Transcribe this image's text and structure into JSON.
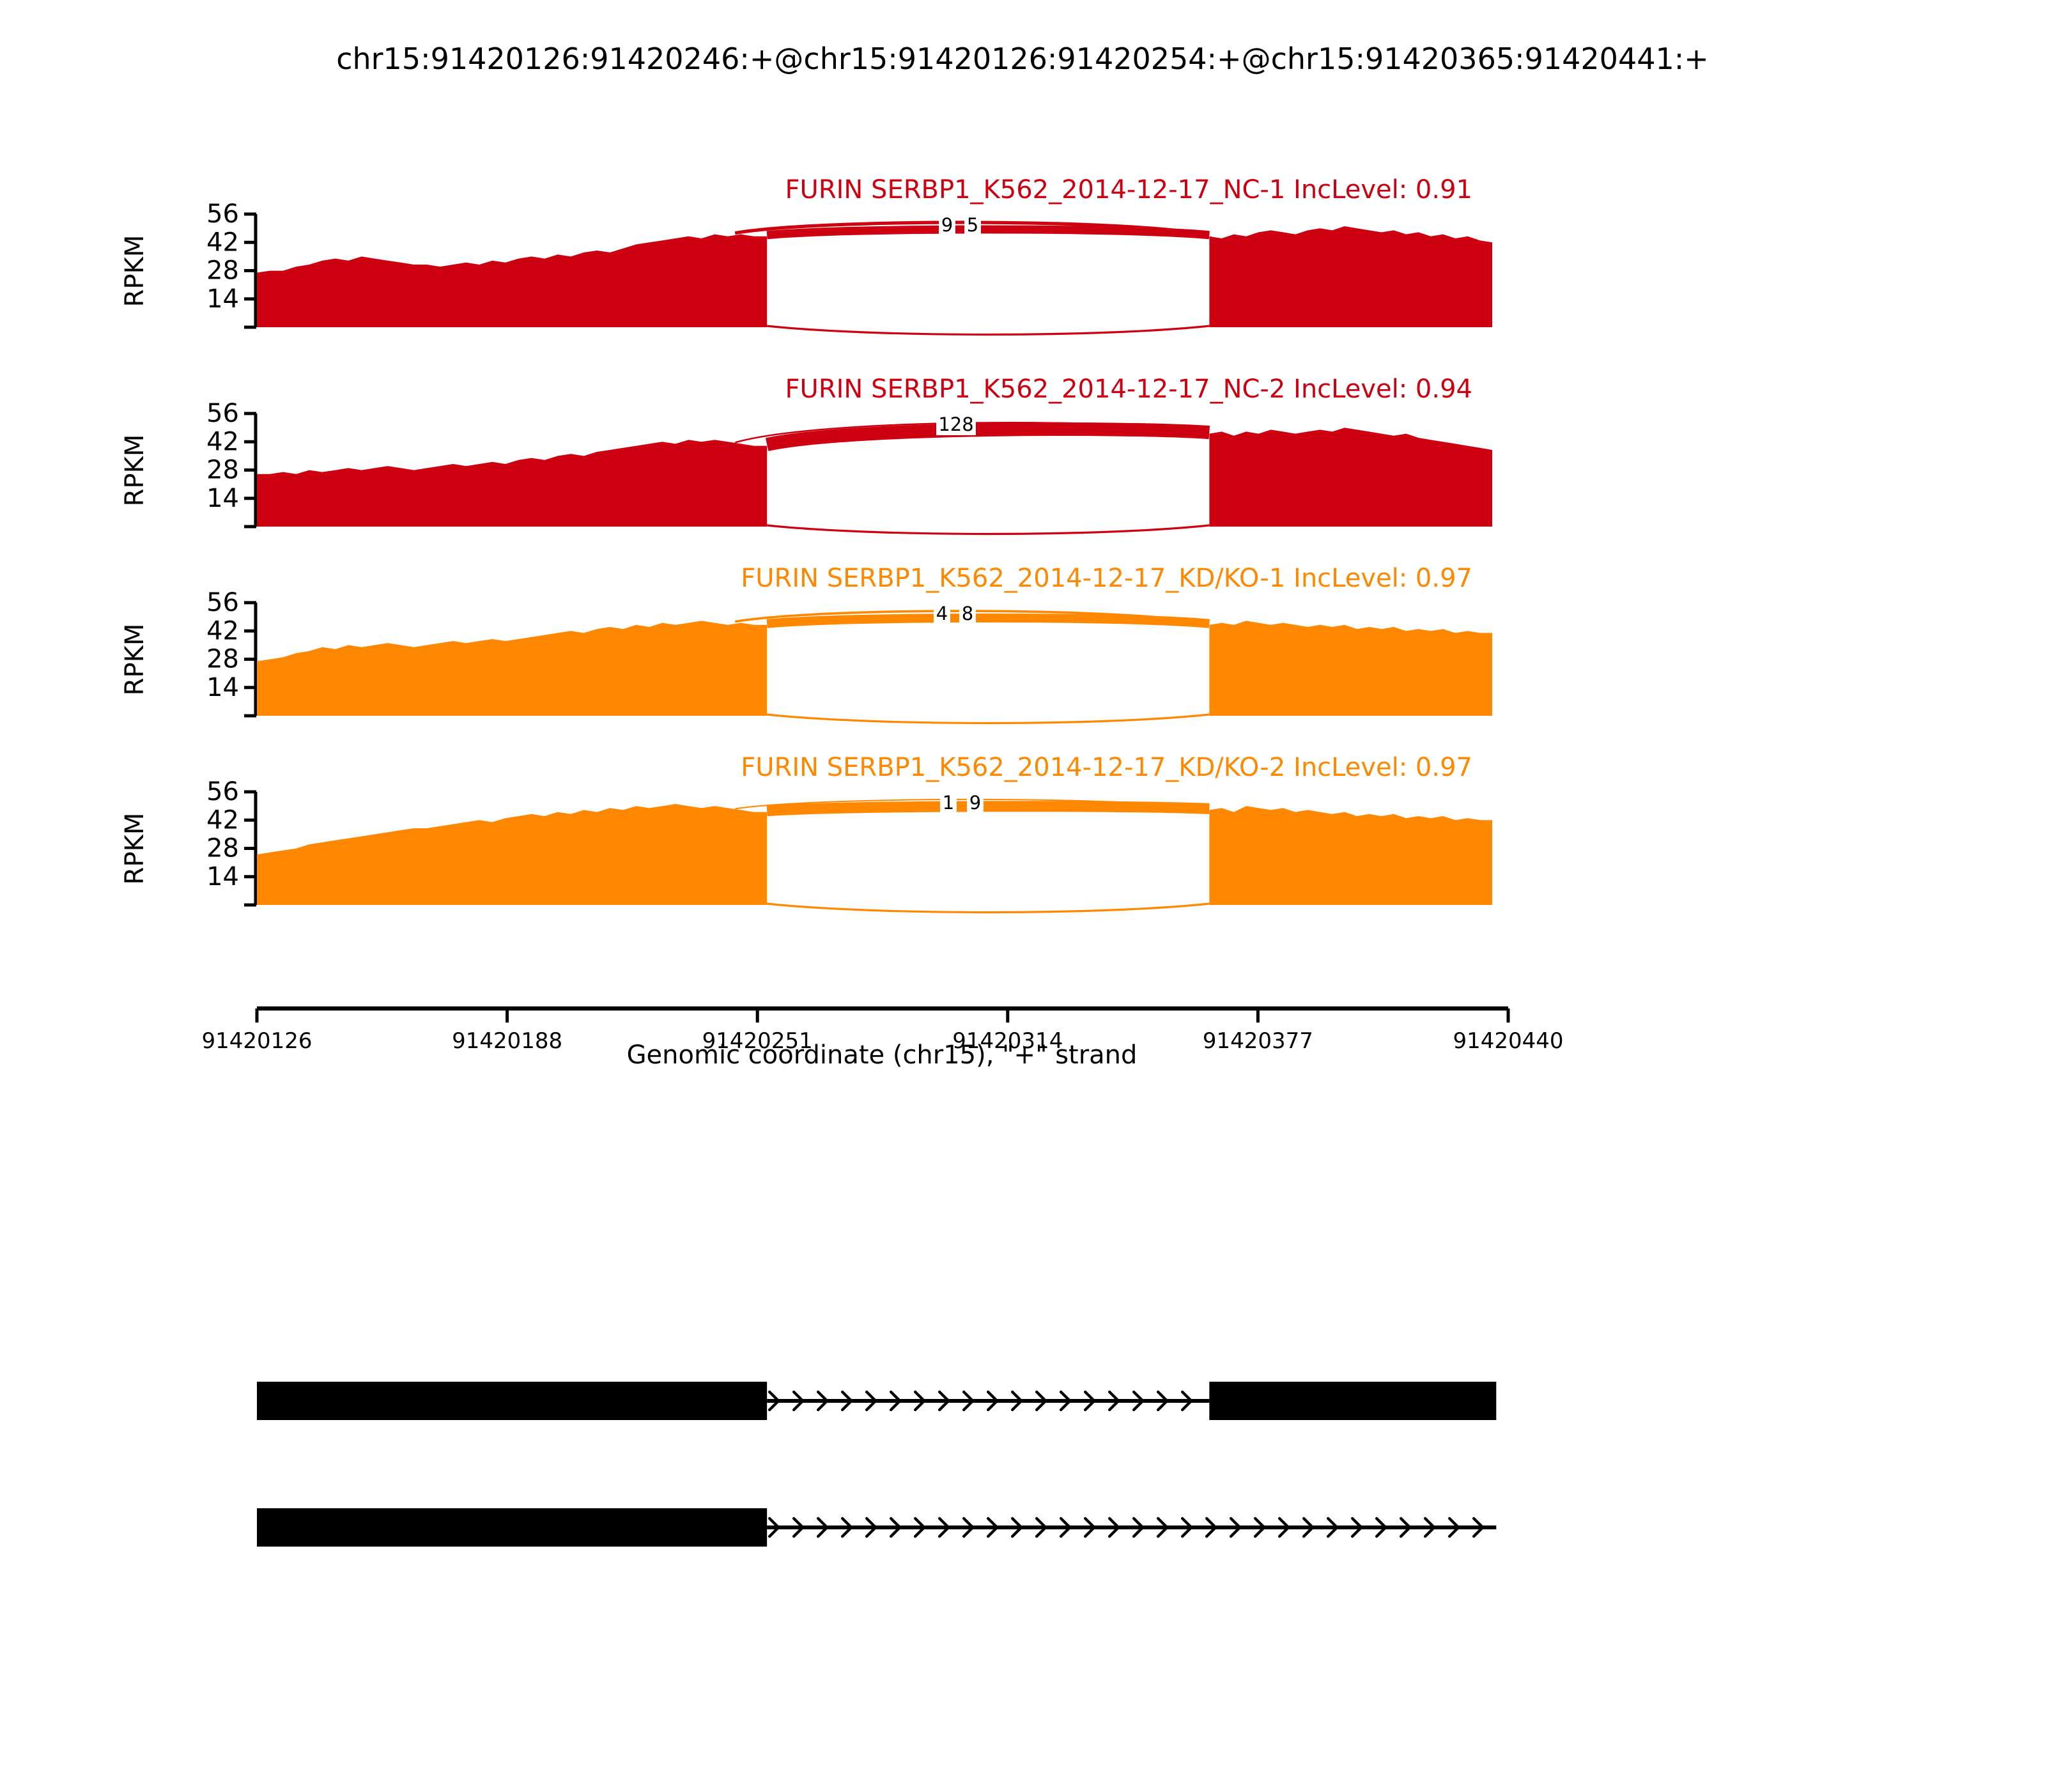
{
  "page": {
    "title": "chr15:91420126:91420246:+@chr15:91420126:91420254:+@chr15:91420365:91420441:+"
  },
  "chart_data": {
    "type": "sashimi",
    "title": "chr15:91420126:91420246:+@chr15:91420126:91420254:+@chr15:91420365:91420441:+",
    "xlabel": "Genomic coordinate (chr15), \"+\" strand",
    "ylabel": "RPKM",
    "x_ticks": [
      "91420126",
      "91420188",
      "91420251",
      "91420314",
      "91420377",
      "91420440"
    ],
    "x_range": [
      91420126,
      91420440
    ],
    "y_ticks": [
      14,
      28,
      42,
      56
    ],
    "y_axis_max": 56,
    "grid": false,
    "region": {
      "chrom": "chr15",
      "strand": "+",
      "exon1_start": 91420126,
      "short_exon_end": 91420246,
      "long_exon_end": 91420254,
      "exon2_start": 91420365,
      "plot_end": 91420436
    },
    "colors": {
      "group1": "#CC0011",
      "group2": "#FF8800",
      "gene_model": "#000000"
    },
    "tracks": [
      {
        "label": "FURIN SERBP1_K562_2014-12-17_NC-1",
        "inc_level": "0.91",
        "color": "#CC0011",
        "junctions": [
          {
            "from": 91420246,
            "to": 91420365,
            "count": "9",
            "arc": "outer",
            "width": 2.6,
            "label_x": 741
          },
          {
            "from": 91420254,
            "to": 91420365,
            "count": "5",
            "arc": "inner",
            "width": 6.5,
            "label_x": 761
          }
        ],
        "coverage_left": [
          27,
          28,
          28,
          30,
          31,
          33,
          34,
          33,
          35,
          34,
          33,
          32,
          31,
          31,
          30,
          31,
          32,
          31,
          33,
          32,
          34,
          35,
          34,
          36,
          35,
          37,
          38,
          37,
          39,
          41,
          42,
          43,
          44,
          45,
          44,
          46,
          45,
          46,
          45,
          45
        ],
        "coverage_right": [
          45,
          44,
          46,
          45,
          47,
          48,
          47,
          46,
          48,
          49,
          48,
          50,
          49,
          48,
          47,
          48,
          46,
          47,
          45,
          46,
          44,
          45,
          43,
          42
        ]
      },
      {
        "label": "FURIN SERBP1_K562_2014-12-17_NC-2",
        "inc_level": "0.94",
        "color": "#CC0011",
        "junctions": [
          {
            "from": 91420246,
            "to": 91420365,
            "count": "",
            "arc": "outer",
            "width": 1.2,
            "label_x": null
          },
          {
            "from": 91420254,
            "to": 91420365,
            "count": "128",
            "arc": "inner",
            "width": 10.5,
            "label_x": 748
          }
        ],
        "coverage_left": [
          26,
          26,
          27,
          26,
          28,
          27,
          28,
          29,
          28,
          29,
          30,
          29,
          28,
          29,
          30,
          31,
          30,
          31,
          32,
          31,
          33,
          34,
          33,
          35,
          36,
          35,
          37,
          38,
          39,
          40,
          41,
          42,
          41,
          43,
          42,
          43,
          42,
          41,
          40,
          40
        ],
        "coverage_right": [
          46,
          47,
          45,
          47,
          46,
          48,
          47,
          46,
          47,
          48,
          47,
          49,
          48,
          47,
          46,
          45,
          46,
          44,
          43,
          42,
          41,
          40,
          39,
          38
        ]
      },
      {
        "label": "FURIN SERBP1_K562_2014-12-17_KD/KO-1",
        "inc_level": "0.97",
        "color": "#FF8800",
        "junctions": [
          {
            "from": 91420246,
            "to": 91420365,
            "count": "4",
            "arc": "outer",
            "width": 1.8,
            "label_x": 737
          },
          {
            "from": 91420254,
            "to": 91420365,
            "count": "8",
            "arc": "inner",
            "width": 7.0,
            "label_x": 757
          }
        ],
        "coverage_left": [
          27,
          28,
          29,
          31,
          32,
          34,
          33,
          35,
          34,
          35,
          36,
          35,
          34,
          35,
          36,
          37,
          36,
          37,
          38,
          37,
          38,
          39,
          40,
          41,
          42,
          41,
          43,
          44,
          43,
          45,
          44,
          46,
          45,
          46,
          47,
          46,
          45,
          46,
          45,
          45
        ],
        "coverage_right": [
          45,
          46,
          45,
          47,
          46,
          45,
          46,
          45,
          44,
          45,
          44,
          45,
          43,
          44,
          43,
          44,
          42,
          43,
          42,
          43,
          41,
          42,
          41,
          41
        ]
      },
      {
        "label": "FURIN SERBP1_K562_2014-12-17_KD/KO-2",
        "inc_level": "0.97",
        "color": "#FF8800",
        "junctions": [
          {
            "from": 91420246,
            "to": 91420365,
            "count": "1",
            "arc": "outer",
            "width": 1.0,
            "label_x": 742
          },
          {
            "from": 91420254,
            "to": 91420365,
            "count": "9",
            "arc": "inner",
            "width": 8.5,
            "label_x": 763
          }
        ],
        "coverage_left": [
          25,
          26,
          27,
          28,
          30,
          31,
          32,
          33,
          34,
          35,
          36,
          37,
          38,
          38,
          39,
          40,
          41,
          42,
          41,
          43,
          44,
          45,
          44,
          46,
          45,
          47,
          46,
          48,
          47,
          49,
          48,
          49,
          50,
          49,
          48,
          49,
          48,
          47,
          46,
          46
        ],
        "coverage_right": [
          47,
          48,
          46,
          49,
          48,
          47,
          48,
          46,
          47,
          46,
          45,
          46,
          44,
          45,
          44,
          45,
          43,
          44,
          43,
          44,
          42,
          43,
          42,
          42
        ]
      }
    ],
    "isoforms": [
      {
        "exons": [
          [
            91420126,
            91420254
          ],
          [
            91420365,
            91420437
          ]
        ],
        "intron_line": [
          91420254,
          91420365
        ],
        "strand": "+"
      },
      {
        "exons": [
          [
            91420126,
            91420254
          ]
        ],
        "intron_line": [
          91420254,
          91420437
        ],
        "strand": "+"
      }
    ],
    "inc_level_prefix": "IncLevel:"
  }
}
